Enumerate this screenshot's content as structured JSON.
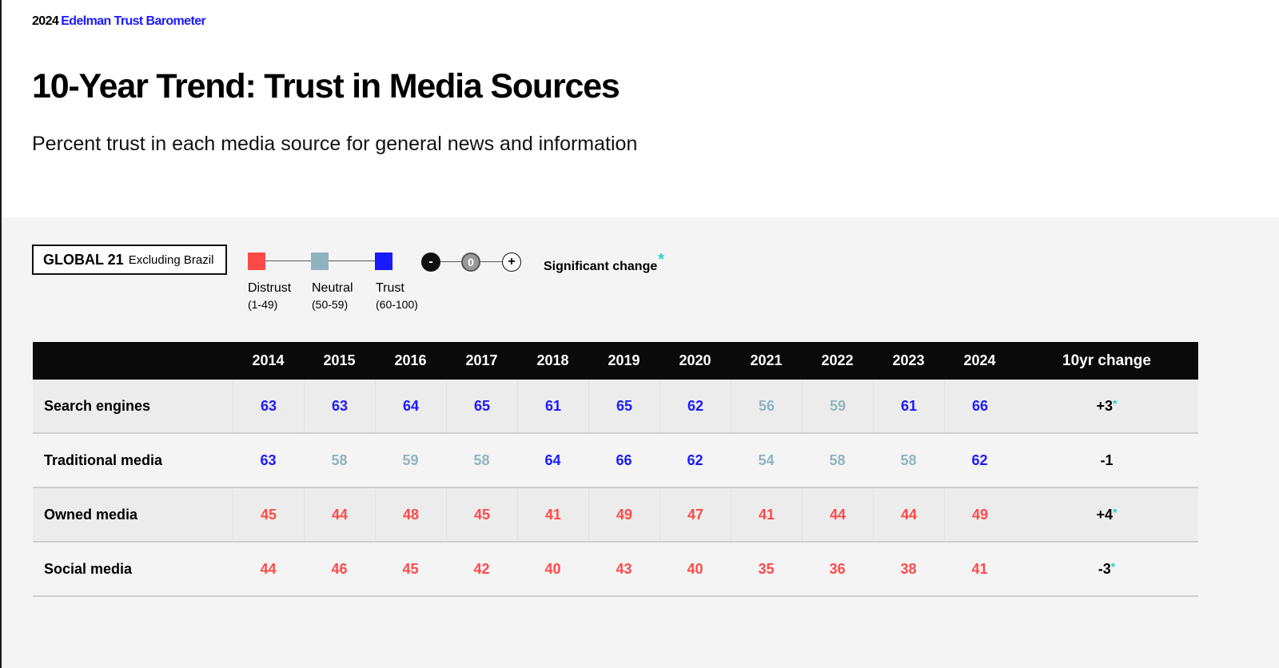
{
  "brand": {
    "year": "2024",
    "name": "Edelman Trust Barometer"
  },
  "title": "10-Year Trend: Trust in Media Sources",
  "subtitle": "Percent trust in each media source for general news and information",
  "scope": {
    "main": "GLOBAL 21",
    "sub": "Excluding Brazil"
  },
  "legend": [
    {
      "label": "Distrust",
      "range": "(1-49)",
      "color": "#ff4a4a"
    },
    {
      "label": "Neutral",
      "range": "(50-59)",
      "color": "#8fb4bf"
    },
    {
      "label": "Trust",
      "range": "(60-100)",
      "color": "#1a1aff"
    }
  ],
  "significance": {
    "minus": "-",
    "zero": "0",
    "plus": "+",
    "label": "Significant change",
    "star": "*"
  },
  "colors": {
    "distrust": "#ff4a4a",
    "neutral": "#8fb4bf",
    "trust": "#1a1aff",
    "star": "#22d3c5"
  },
  "chart_data": {
    "type": "table",
    "header_change": "10yr change",
    "years": [
      "2014",
      "2015",
      "2016",
      "2017",
      "2018",
      "2019",
      "2020",
      "2021",
      "2022",
      "2023",
      "2024"
    ],
    "rows": [
      {
        "name": "Search engines",
        "values": [
          63,
          63,
          64,
          65,
          61,
          65,
          62,
          56,
          59,
          61,
          66
        ],
        "change": "+3",
        "significant": true
      },
      {
        "name": "Traditional media",
        "values": [
          63,
          58,
          59,
          58,
          64,
          66,
          62,
          54,
          58,
          58,
          62
        ],
        "change": "-1",
        "significant": false
      },
      {
        "name": "Owned media",
        "values": [
          45,
          44,
          48,
          45,
          41,
          49,
          47,
          41,
          44,
          44,
          49
        ],
        "change": "+4",
        "significant": true
      },
      {
        "name": "Social media",
        "values": [
          44,
          46,
          45,
          42,
          40,
          43,
          40,
          35,
          36,
          38,
          41
        ],
        "change": "-3",
        "significant": true
      }
    ]
  }
}
